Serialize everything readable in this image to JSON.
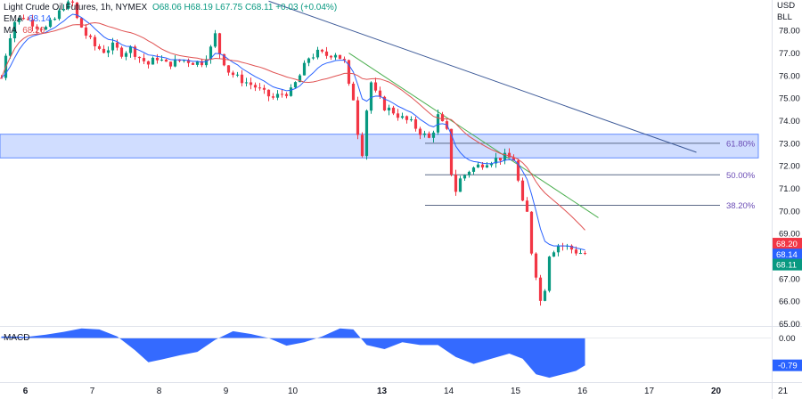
{
  "legend": {
    "symbol": "Light Crude Oil Futures, 1h, NYMEX",
    "ohlc": "O68.06 H68.19 L67.75 C68.11 +0.03 (+0.04%)",
    "ema_label": "EMA",
    "ema_value": "68.14",
    "ma_label": "MA",
    "ma_value": "68.20"
  },
  "currency": {
    "line1": "USD",
    "line2": "BLL"
  },
  "macd_label": "MACD",
  "chart_data": [
    {
      "type": "candlestick",
      "title": "Light Crude Oil Futures, 1h, NYMEX",
      "x_tick_labels": [
        "6",
        "7",
        "8",
        "9",
        "10",
        "13",
        "14",
        "15",
        "16",
        "17",
        "20",
        "21"
      ],
      "bold_ticks": [
        "6",
        "13",
        "20"
      ],
      "y_ticks": [
        "78.00",
        "77.00",
        "76.00",
        "75.00",
        "74.00",
        "73.00",
        "72.00",
        "71.00",
        "70.00",
        "69.00",
        "67.00",
        "66.00",
        "65.00"
      ],
      "ylim": [
        64.9,
        79.35
      ],
      "price_path": [
        [
          0,
          75.9
        ],
        [
          1.5,
          77.5
        ],
        [
          3,
          78.4
        ],
        [
          5,
          78.6
        ],
        [
          8,
          78.2
        ],
        [
          10,
          78.1
        ],
        [
          12,
          78.5
        ],
        [
          14,
          79.1
        ],
        [
          16,
          79.2
        ],
        [
          17,
          78.5
        ],
        [
          19,
          77.8
        ],
        [
          21,
          77.3
        ],
        [
          23,
          77.1
        ],
        [
          25,
          77.3
        ],
        [
          27,
          77.0
        ],
        [
          29,
          77.2
        ],
        [
          31,
          76.8
        ],
        [
          33,
          76.5
        ],
        [
          35,
          76.8
        ],
        [
          37,
          76.5
        ],
        [
          39,
          76.6
        ],
        [
          41,
          76.7
        ],
        [
          43,
          76.6
        ],
        [
          45,
          76.6
        ],
        [
          47,
          77.2
        ],
        [
          48,
          77.8
        ],
        [
          49,
          77.0
        ],
        [
          51,
          76.2
        ],
        [
          53,
          75.9
        ],
        [
          55,
          75.7
        ],
        [
          57,
          75.5
        ],
        [
          59,
          75.2
        ],
        [
          61,
          75.0
        ],
        [
          63,
          75.2
        ],
        [
          65,
          75.3
        ],
        [
          67,
          76.0
        ],
        [
          69,
          76.8
        ],
        [
          71,
          77.0
        ],
        [
          73,
          76.9
        ],
        [
          75,
          77.0
        ],
        [
          77,
          76.6
        ],
        [
          78,
          75.5
        ],
        [
          79,
          75.0
        ],
        [
          80,
          73.5
        ],
        [
          81,
          72.6
        ],
        [
          82,
          74.5
        ],
        [
          83,
          75.7
        ],
        [
          84,
          75.2
        ],
        [
          86,
          74.6
        ],
        [
          88,
          74.4
        ],
        [
          90,
          74.1
        ],
        [
          92,
          73.9
        ],
        [
          94,
          73.5
        ],
        [
          96,
          73.2
        ],
        [
          97,
          73.6
        ],
        [
          98,
          74.2
        ],
        [
          100,
          73.5
        ],
        [
          101,
          71.7
        ],
        [
          102,
          70.9
        ],
        [
          103,
          71.4
        ],
        [
          105,
          71.8
        ],
        [
          107,
          72.0
        ],
        [
          109,
          72.2
        ],
        [
          111,
          72.3
        ],
        [
          113,
          72.4
        ],
        [
          115,
          72.3
        ],
        [
          116,
          71.3
        ],
        [
          117,
          70.3
        ],
        [
          118,
          69.9
        ],
        [
          119,
          68.2
        ],
        [
          120,
          67.2
        ],
        [
          121,
          66.0
        ],
        [
          122,
          66.6
        ],
        [
          123,
          68.1
        ],
        [
          125,
          68.5
        ],
        [
          127,
          68.4
        ],
        [
          129,
          68.2
        ],
        [
          131,
          68.1
        ]
      ],
      "series": [
        {
          "name": "EMA",
          "color": "#2962ff"
        },
        {
          "name": "MA",
          "color": "#e05252"
        }
      ],
      "up_color": "#089981",
      "down_color": "#f23645",
      "zone": {
        "from": 72.35,
        "to": 73.4,
        "color": "#2962ff"
      },
      "fib_levels": [
        {
          "label": "61.80%",
          "price": 73.0
        },
        {
          "label": "50.00%",
          "price": 71.6
        },
        {
          "label": "38.20%",
          "price": 70.25
        }
      ],
      "trendlines": [
        {
          "name": "upper-trendline",
          "color": "#3d5a98",
          "from": [
            60,
            79.3
          ],
          "to": [
            156,
            72.6
          ]
        },
        {
          "name": "lower-trendline",
          "color": "#4caf50",
          "from": [
            78,
            77.0
          ],
          "to": [
            134,
            69.7
          ]
        }
      ],
      "price_labels": [
        {
          "value": "68.20",
          "price": 68.55,
          "color": "#f23645"
        },
        {
          "value": "68.14",
          "price": 68.07,
          "color": "#2962ff"
        },
        {
          "value": "68.11",
          "price": 67.62,
          "color": "#089981"
        }
      ]
    },
    {
      "type": "area",
      "title": "MACD",
      "y_ticks": [
        "0.00",
        "-0.79"
      ],
      "ylim": [
        -1.25,
        0.3
      ],
      "color": "#2962ff",
      "x": [
        0,
        6,
        10,
        14,
        18,
        22,
        26,
        30,
        33,
        36,
        40,
        44,
        48,
        52,
        56,
        60,
        64,
        68,
        72,
        76,
        79,
        82,
        86,
        90,
        94,
        98,
        102,
        106,
        110,
        114,
        117,
        120,
        123,
        126,
        129,
        131
      ],
      "values": [
        0.05,
        0.04,
        0.1,
        0.18,
        0.28,
        0.25,
        0.05,
        -0.35,
        -0.7,
        -0.62,
        -0.5,
        -0.4,
        -0.05,
        0.2,
        0.12,
        0.0,
        -0.22,
        -0.12,
        0.05,
        0.28,
        0.25,
        -0.2,
        -0.32,
        -0.12,
        -0.2,
        -0.2,
        -0.55,
        -0.75,
        -0.6,
        -0.45,
        -0.6,
        -1.05,
        -1.15,
        -1.05,
        -0.95,
        -0.79
      ],
      "current_value_label": "-0.79"
    }
  ]
}
